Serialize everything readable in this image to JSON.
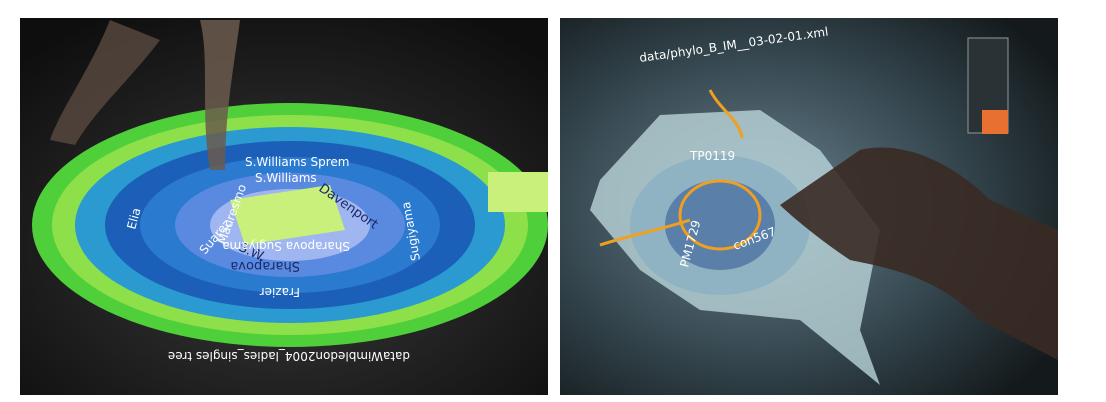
{
  "left_panel": {
    "ring_labels": [
      "S.Williams",
      "S.W.",
      "Davenport",
      "Sharapova",
      "Suarez",
      "Mauresmo",
      "Elia",
      "Frazier",
      "Sugiyama",
      "S.Williams Sprem",
      "Sharapova Sugiyama"
    ],
    "title": "dataWimbledon2004_ladies_singles tree"
  },
  "right_panel": {
    "file_path": "data/phylo_B_IM__03-02-01.xml",
    "node_labels": [
      "TP0119",
      "PM1729",
      "con567"
    ]
  }
}
